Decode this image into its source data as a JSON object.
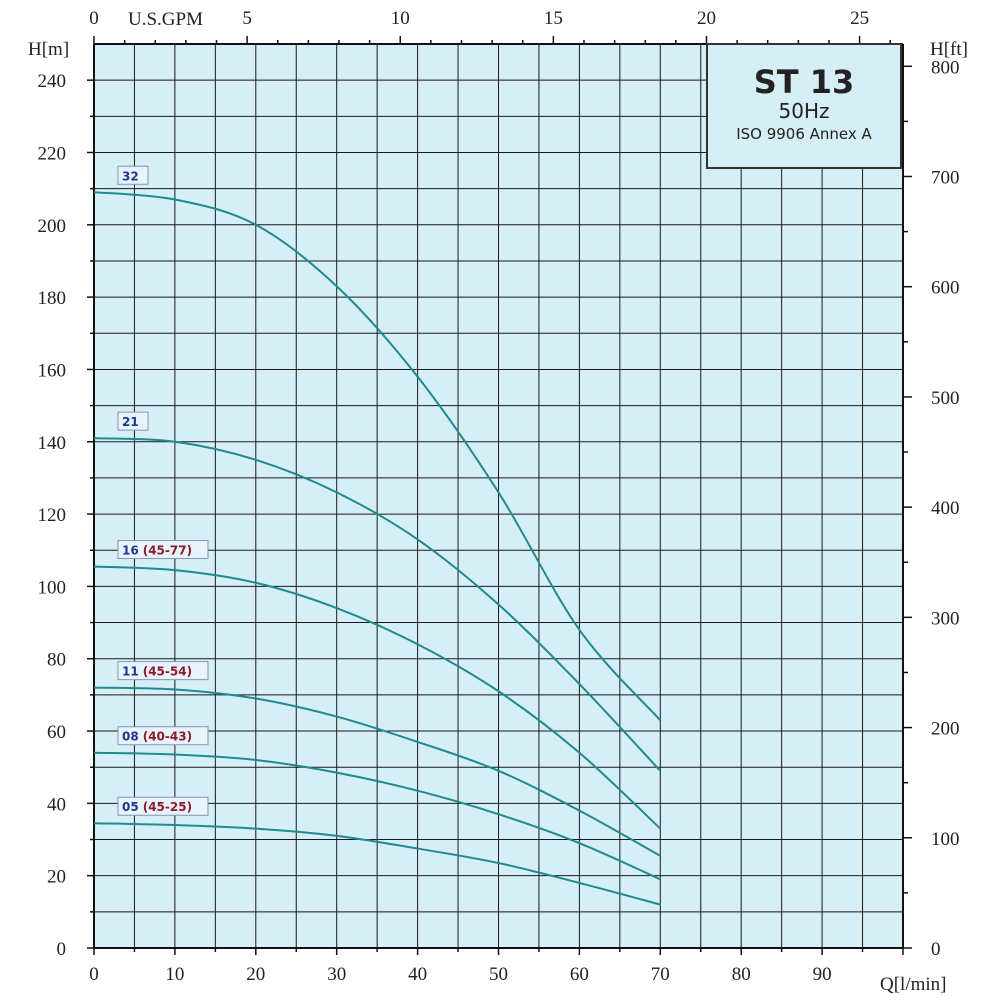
{
  "chart_data": {
    "type": "line",
    "title": "ST 13",
    "subtitle": "50Hz",
    "standard": "ISO 9906 Annex A",
    "x": [
      0,
      10,
      20,
      30,
      40,
      50,
      60,
      70
    ],
    "xlabel": "Q[l/min]",
    "xlim": [
      0,
      100
    ],
    "x_ticks": [
      0,
      10,
      20,
      30,
      40,
      50,
      60,
      70,
      80,
      90
    ],
    "x2label": "U.S.GPM",
    "x2_ticks": [
      0,
      5,
      10,
      15,
      20,
      25
    ],
    "ylabel": "H[m]",
    "ylim": [
      0,
      250
    ],
    "y_ticks": [
      0,
      20,
      40,
      60,
      80,
      100,
      120,
      140,
      160,
      180,
      200,
      220,
      240
    ],
    "y2label": "H[ft]",
    "y2_ticks": [
      0,
      100,
      200,
      300,
      400,
      500,
      600,
      700,
      800
    ],
    "grid": true,
    "series": [
      {
        "name": "32",
        "suffix": "",
        "values": [
          209,
          207,
          200,
          183,
          158,
          126,
          88,
          63
        ]
      },
      {
        "name": "21",
        "suffix": "",
        "values": [
          141,
          140,
          135,
          126,
          113,
          95,
          73,
          49
        ]
      },
      {
        "name": "16",
        "suffix": "(45-77)",
        "values": [
          105.5,
          104.5,
          101,
          94,
          84,
          71,
          54,
          33
        ]
      },
      {
        "name": "11",
        "suffix": "(45-54)",
        "values": [
          72,
          71.5,
          69,
          64,
          57,
          49,
          38,
          25.5
        ]
      },
      {
        "name": "08",
        "suffix": "(40-43)",
        "values": [
          54,
          53.5,
          52,
          48.5,
          43.5,
          37,
          29,
          19
        ]
      },
      {
        "name": "05",
        "suffix": "(45-25)",
        "values": [
          34.5,
          34,
          33,
          31,
          27.5,
          23.5,
          18,
          12
        ]
      }
    ],
    "colors": {
      "background": "#d6eef5",
      "grid": "#1a1a1a",
      "curve": "#1f8a8f",
      "label_number": "#1a3a8a",
      "label_suffix": "#8b1a2e"
    }
  }
}
